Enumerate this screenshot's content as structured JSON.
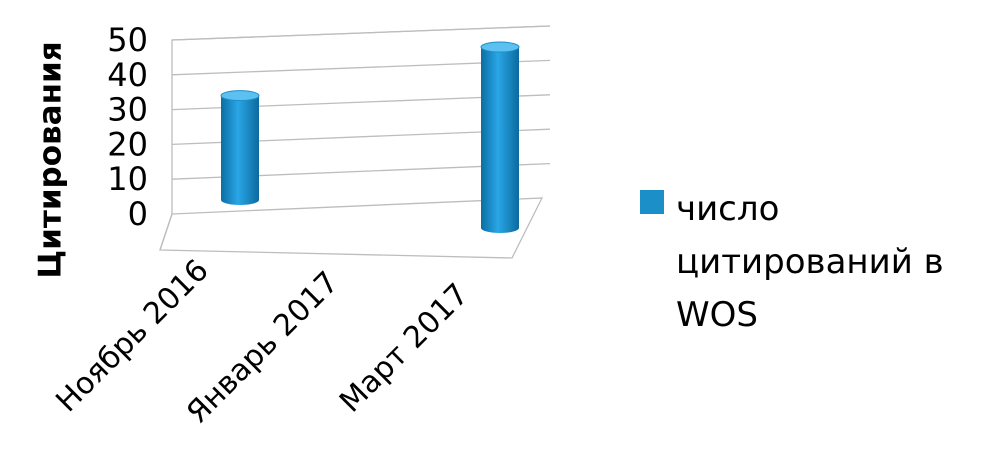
{
  "chart_data": {
    "type": "bar",
    "style": "3d-cylinder",
    "categories": [
      "Ноябрь 2016",
      "Январь 2017",
      "Март 2017"
    ],
    "series": [
      {
        "name": "число цитирований в WOS",
        "values": [
          30,
          0,
          52
        ],
        "color": "#1a8fc8"
      }
    ],
    "ylabel": "Цитирования",
    "ylim": [
      0,
      50
    ],
    "yticks": [
      0,
      10,
      20,
      30,
      40,
      50
    ],
    "grid": true,
    "legend": "right",
    "legend_lines": [
      "число",
      "цитирований в",
      "WOS"
    ]
  }
}
